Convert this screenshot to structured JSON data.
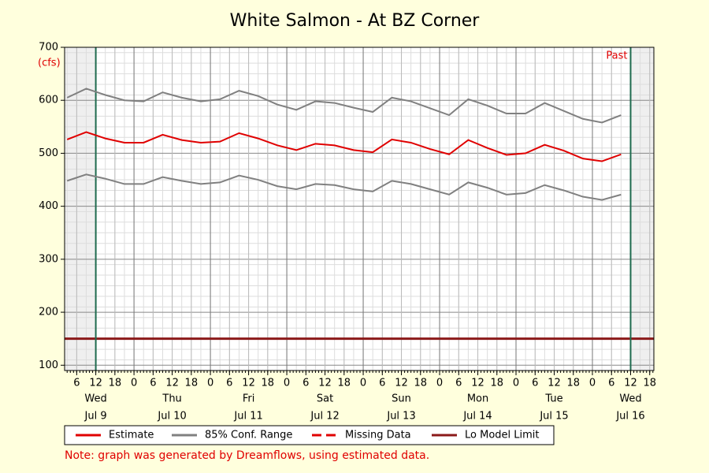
{
  "chart_data": {
    "type": "line",
    "title": "White Salmon - At BZ Corner",
    "y_unit": "(cfs)",
    "past_label": "Past",
    "note": "Note: graph was generated by Dreamflows, using estimated data.",
    "x": [
      3,
      9,
      15,
      21,
      27,
      33,
      39,
      45,
      51,
      57,
      63,
      69,
      75,
      81,
      87,
      93,
      99,
      105,
      111,
      117,
      123,
      129,
      135,
      141,
      147,
      153,
      159,
      165,
      171,
      177
    ],
    "series": [
      {
        "name": "Estimate",
        "color": "#e00000",
        "values": [
          526,
          540,
          528,
          520,
          520,
          535,
          525,
          520,
          522,
          538,
          528,
          515,
          506,
          518,
          515,
          506,
          502,
          526,
          520,
          508,
          498,
          525,
          510,
          497,
          500,
          516,
          505,
          490,
          485,
          498
        ]
      },
      {
        "name": "85% Conf. Range",
        "color": "#808080",
        "upper": [
          605,
          622,
          610,
          600,
          598,
          615,
          605,
          598,
          602,
          618,
          608,
          592,
          582,
          598,
          595,
          586,
          578,
          605,
          598,
          585,
          572,
          602,
          590,
          575,
          575,
          595,
          580,
          565,
          558,
          572
        ],
        "lower": [
          448,
          460,
          452,
          442,
          442,
          455,
          448,
          442,
          445,
          458,
          450,
          438,
          432,
          442,
          440,
          432,
          428,
          448,
          442,
          432,
          422,
          445,
          435,
          422,
          425,
          440,
          430,
          418,
          412,
          422
        ]
      }
    ],
    "missing": {
      "name": "Missing Data",
      "color": "#e00000"
    },
    "lo_limit": {
      "name": "Lo Model Limit",
      "value": 150,
      "color": "#8b1a1a"
    },
    "vlines": [
      12,
      180
    ],
    "vline_color": "#1f6b4f",
    "xlim": [
      2.2,
      187.3
    ],
    "xticks": [
      6,
      12,
      18,
      {
        "value": 24,
        "label": "0"
      },
      {
        "value": 30,
        "label": "6"
      },
      {
        "value": 36,
        "label": "12"
      },
      {
        "value": 42,
        "label": "18"
      },
      {
        "value": 48,
        "label": "0"
      },
      {
        "value": 54,
        "label": "6"
      },
      {
        "value": 60,
        "label": "12"
      },
      {
        "value": 66,
        "label": "18"
      },
      {
        "value": 72,
        "label": "0"
      },
      {
        "value": 78,
        "label": "6"
      },
      {
        "value": 84,
        "label": "12"
      },
      {
        "value": 90,
        "label": "18"
      },
      {
        "value": 96,
        "label": "0"
      },
      {
        "value": 102,
        "label": "6"
      },
      {
        "value": 108,
        "label": "12"
      },
      {
        "value": 114,
        "label": "18"
      },
      {
        "value": 120,
        "label": "0"
      },
      {
        "value": 126,
        "label": "6"
      },
      {
        "value": 132,
        "label": "12"
      },
      {
        "value": 138,
        "label": "18"
      },
      {
        "value": 144,
        "label": "0"
      },
      {
        "value": 150,
        "label": "6"
      },
      {
        "value": 156,
        "label": "12"
      },
      {
        "value": 162,
        "label": "18"
      },
      {
        "value": 168,
        "label": "0"
      },
      {
        "value": 174,
        "label": "6"
      },
      {
        "value": 180,
        "label": "12"
      },
      {
        "value": 186,
        "label": "18"
      }
    ],
    "days": [
      {
        "value": 12,
        "weekday": "Wed",
        "date": "Jul 9"
      },
      {
        "value": 36,
        "weekday": "Thu",
        "date": "Jul 10"
      },
      {
        "value": 60,
        "weekday": "Fri",
        "date": "Jul 11"
      },
      {
        "value": 84,
        "weekday": "Sat",
        "date": "Jul 12"
      },
      {
        "value": 108,
        "weekday": "Sun",
        "date": "Jul 13"
      },
      {
        "value": 132,
        "weekday": "Mon",
        "date": "Jul 14"
      },
      {
        "value": 156,
        "weekday": "Tue",
        "date": "Jul 15"
      },
      {
        "value": 180,
        "weekday": "Wed",
        "date": "Jul 16"
      }
    ],
    "ylim": [
      90,
      700
    ],
    "yticks": [
      100,
      200,
      300,
      400,
      500,
      600,
      700
    ],
    "grid": true
  }
}
